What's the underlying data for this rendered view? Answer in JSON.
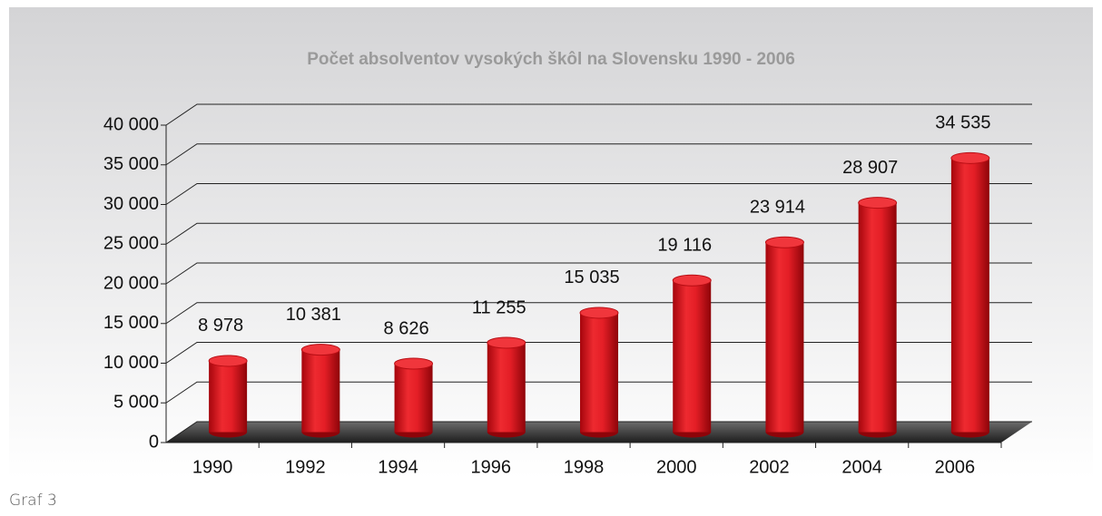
{
  "chart_data": {
    "type": "bar3d",
    "title": "Počet absolventov vysokých škôl na Slovensku 1990 - 2006",
    "categories": [
      "1990",
      "1992",
      "1994",
      "1996",
      "1998",
      "2000",
      "2002",
      "2004",
      "2006"
    ],
    "values": [
      8978,
      10381,
      8626,
      11255,
      15035,
      19116,
      23914,
      28907,
      34535
    ],
    "value_labels": [
      "8 978",
      "10 381",
      "8 626",
      "11 255",
      "15 035",
      "19 116",
      "23 914",
      "28 907",
      "34 535"
    ],
    "color": "#e41e26",
    "ylim": [
      0,
      40000
    ],
    "yticks": [
      0,
      {
        "value": 5000,
        "label": "5 000"
      },
      {
        "value": 10000,
        "label": "10 000"
      },
      {
        "value": 15000,
        "label": "15 000"
      },
      {
        "value": 20000,
        "label": "20 000"
      },
      {
        "value": 25000,
        "label": "25 000"
      },
      {
        "value": 30000,
        "label": "30 000"
      },
      {
        "value": 35000,
        "label": "35 000"
      },
      {
        "value": 40000,
        "label": "40 000"
      }
    ],
    "grid": true
  },
  "caption": "Graf 3"
}
